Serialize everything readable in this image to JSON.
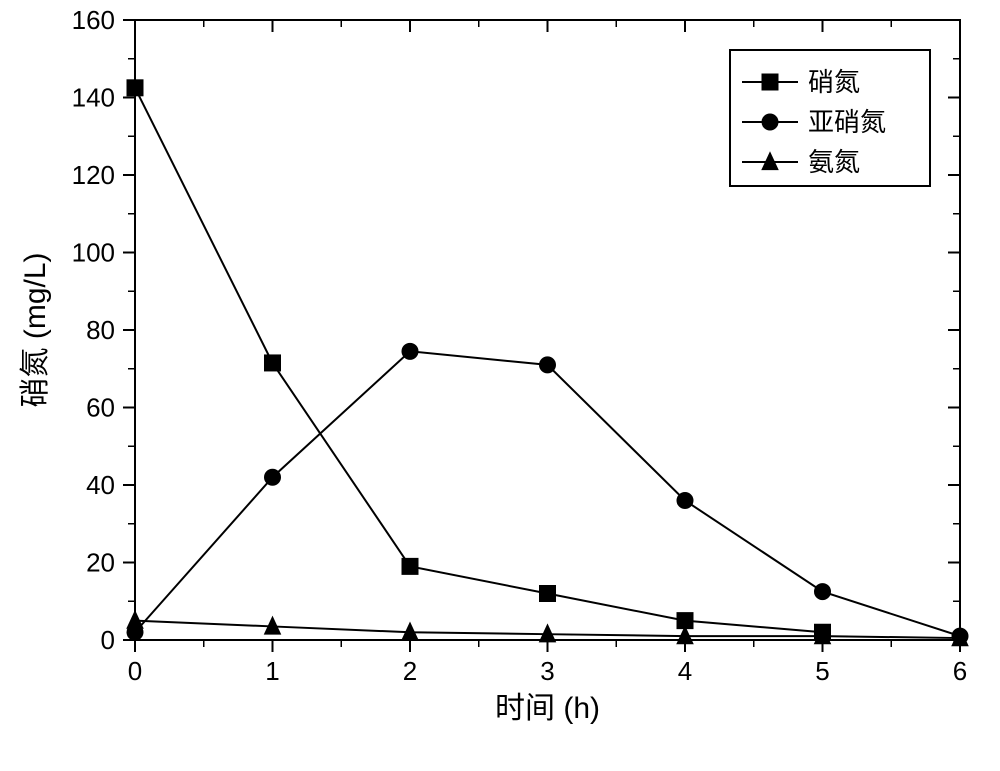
{
  "chart": {
    "type": "line",
    "background_color": "#ffffff",
    "line_color": "#000000",
    "marker_fill": "#000000",
    "axis_color": "#000000",
    "xlabel": "时间 (h)",
    "ylabel": "硝氮 (mg/L)",
    "x": {
      "min": 0,
      "max": 6,
      "major_step": 1,
      "minor_step": 0.5,
      "ticks": [
        0,
        1,
        2,
        3,
        4,
        5,
        6
      ]
    },
    "y": {
      "min": 0,
      "max": 160,
      "major_step": 20,
      "minor_step": 10,
      "ticks": [
        0,
        20,
        40,
        60,
        80,
        100,
        120,
        140,
        160
      ]
    },
    "axis_title_fontsize": 30,
    "tick_label_fontsize": 26,
    "legend_fontsize": 26,
    "line_width": 2,
    "marker_size": 8,
    "series": [
      {
        "name": "硝氮",
        "marker": "square",
        "x": [
          0,
          1,
          2,
          3,
          4,
          5
        ],
        "y": [
          142.5,
          71.5,
          19,
          12,
          5,
          2
        ]
      },
      {
        "name": "亚硝氮",
        "marker": "circle",
        "x": [
          0,
          1,
          2,
          3,
          4,
          5,
          6
        ],
        "y": [
          2,
          42,
          74.5,
          71,
          36,
          12.5,
          1
        ]
      },
      {
        "name": "氨氮",
        "marker": "triangle",
        "x": [
          0,
          1,
          2,
          3,
          4,
          5,
          6
        ],
        "y": [
          5,
          3.5,
          2,
          1.5,
          1,
          1,
          0.5
        ]
      }
    ],
    "legend": {
      "position": "top-right"
    }
  }
}
